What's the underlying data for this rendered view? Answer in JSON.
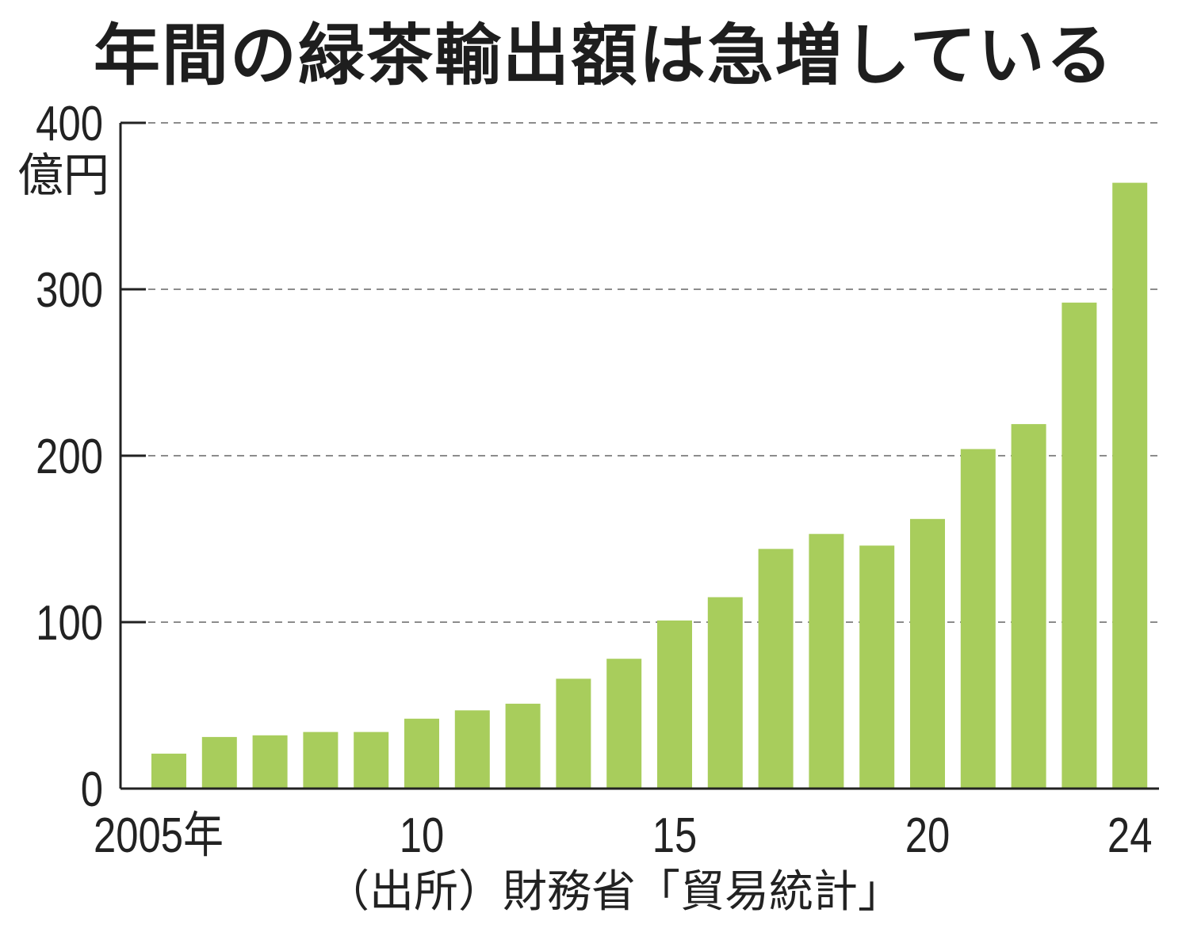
{
  "title": "年間の緑茶輸出額は急増している",
  "source": "（出所）財務省「貿易統計」",
  "colors": {
    "bar": "#a8cd5c",
    "axis": "#222222",
    "grid": "#8c8c8c",
    "text": "#222222"
  },
  "chart_data": {
    "type": "bar",
    "title": "年間の緑茶輸出額は急増している",
    "ylabel": "億円",
    "xlabel": "",
    "ylim": [
      0,
      400
    ],
    "yticks": [
      "0",
      "100",
      "200",
      "300",
      "400"
    ],
    "x_tick_labels": [
      "2005年",
      "10",
      "15",
      "20",
      "24"
    ],
    "categories": [
      "2005",
      "2006",
      "2007",
      "2008",
      "2009",
      "2010",
      "2011",
      "2012",
      "2013",
      "2014",
      "2015",
      "2016",
      "2017",
      "2018",
      "2019",
      "2020",
      "2021",
      "2022",
      "2023",
      "2024"
    ],
    "values": [
      21,
      31,
      32,
      34,
      34,
      42,
      47,
      51,
      66,
      78,
      101,
      115,
      144,
      153,
      146,
      162,
      204,
      219,
      292,
      364
    ],
    "grid": true,
    "grid_style": "dashed horizontal",
    "legend": "none"
  }
}
